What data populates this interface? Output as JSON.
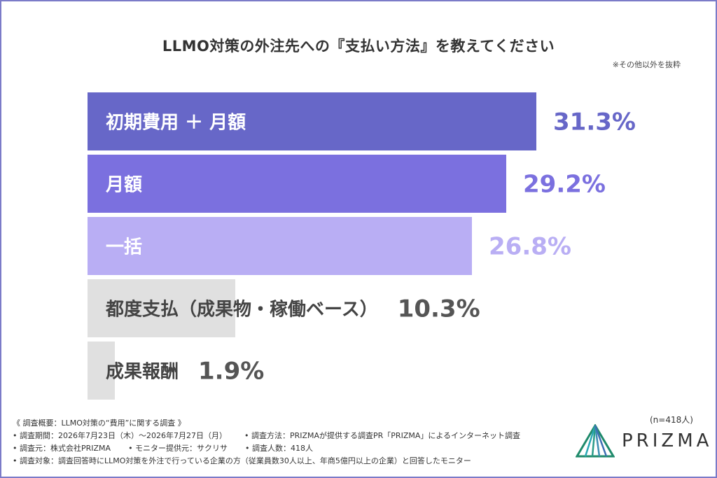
{
  "title": "LLMO対策の外注先への『支払い方法』を教えてください",
  "note": "※その他以外を抜粋",
  "colors": {
    "frame": "#7b7bc8",
    "bars": [
      "#6767c8",
      "#7b70df",
      "#b9aef4",
      "#e0e0e0",
      "#e0e0e0"
    ],
    "labels": [
      "#ffffff",
      "#ffffff",
      "#ffffff",
      "#444444",
      "#444444"
    ],
    "values": [
      "#6767c8",
      "#7b70df",
      "#b9aef4",
      "#555555",
      "#555555"
    ]
  },
  "chart_data": {
    "type": "bar",
    "orientation": "horizontal",
    "categories": [
      "初期費用 ＋ 月額",
      "月額",
      "一括",
      "都度支払（成果物・稼働ベース）",
      "成果報酬"
    ],
    "values": [
      31.3,
      29.2,
      26.8,
      10.3,
      1.9
    ],
    "value_labels": [
      "31.3%",
      "29.2%",
      "26.8%",
      "10.3%",
      "1.9%"
    ],
    "unit": "%",
    "xlim": [
      0,
      31.3
    ]
  },
  "sample": "(n=418人)",
  "footer": {
    "line1": "《 調査概要：LLMO対策の“費用”に関する調査 》",
    "period": "• 調査期間：2026年7月23日（木）〜2026年7月27日（月）",
    "method": "• 調査方法：PRIZMAが提供する調査PR「PRIZMA」によるインターネット調査",
    "source": "• 調査元：株式会社PRIZMA",
    "monitor": "• モニター提供元：サクリサ",
    "count": "• 調査人数：418人",
    "target": "• 調査対象：調査回答時にLLMO対策を外注で行っている企業の方（従業員数30人以上、年商5億円以上の企業）と回答したモニター"
  },
  "logo": {
    "text": "PRIZMA",
    "icon": "prism-triangle-icon",
    "colors": [
      "#1f8a6b",
      "#2aa8b5",
      "#3d6fb3"
    ]
  }
}
